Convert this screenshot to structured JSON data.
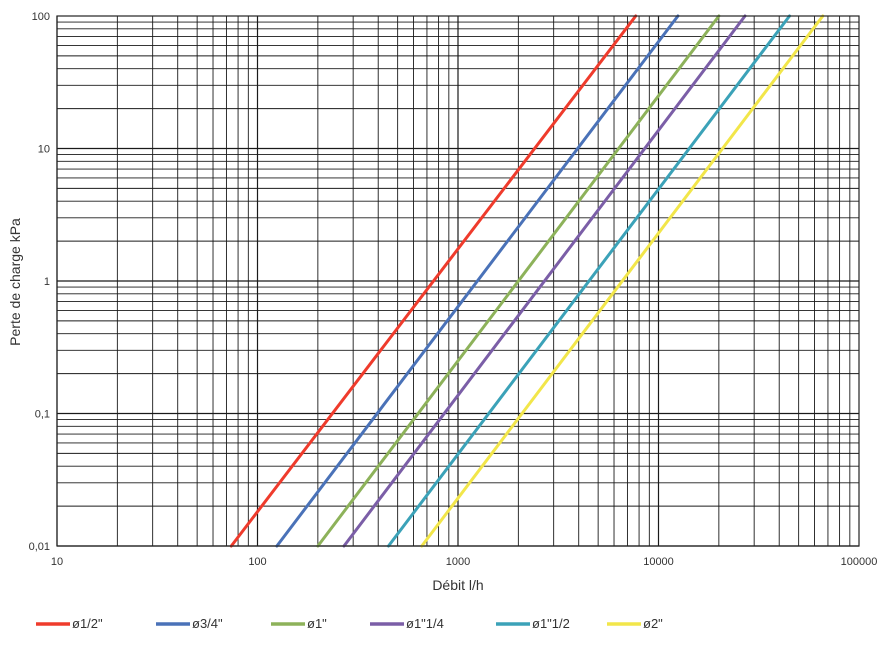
{
  "chart_data": {
    "type": "line",
    "xlabel": "Débit l/h",
    "ylabel": "Perte de charge kPa",
    "x_scale": "log",
    "y_scale": "log",
    "xlim": [
      10,
      100000
    ],
    "ylim": [
      0.01,
      100
    ],
    "grid": true,
    "legend_position": "bottom-left",
    "x_tick_labels": [
      {
        "value": 10,
        "label": "10"
      },
      {
        "value": 100,
        "label": "100"
      },
      {
        "value": 1000,
        "label": "1000"
      },
      {
        "value": 10000,
        "label": "10000"
      },
      {
        "value": 100000,
        "label": "100000"
      }
    ],
    "y_tick_labels": [
      {
        "value": 0.01,
        "label": "0,01"
      },
      {
        "value": 0.1,
        "label": "0,1"
      },
      {
        "value": 1,
        "label": "1"
      },
      {
        "value": 10,
        "label": "10"
      },
      {
        "value": 100,
        "label": "100"
      }
    ],
    "series": [
      {
        "name": "ø1/2\"",
        "color": "#ef3b2c",
        "x": [
          74,
          7700
        ],
        "y": [
          0.01,
          100
        ]
      },
      {
        "name": "ø3/4\"",
        "color": "#4a72b8",
        "x": [
          125,
          12500
        ],
        "y": [
          0.01,
          100
        ]
      },
      {
        "name": "ø1\"",
        "color": "#8db25a",
        "x": [
          200,
          20000
        ],
        "y": [
          0.01,
          100
        ]
      },
      {
        "name": "ø1\"1/4",
        "color": "#7b5ea7",
        "x": [
          270,
          27000
        ],
        "y": [
          0.01,
          100
        ]
      },
      {
        "name": "ø1\"1/2",
        "color": "#3ba2b8",
        "x": [
          450,
          45000
        ],
        "y": [
          0.01,
          100
        ]
      },
      {
        "name": "ø2\"",
        "color": "#f2e64a",
        "x": [
          660,
          66000
        ],
        "y": [
          0.01,
          100
        ]
      }
    ]
  }
}
